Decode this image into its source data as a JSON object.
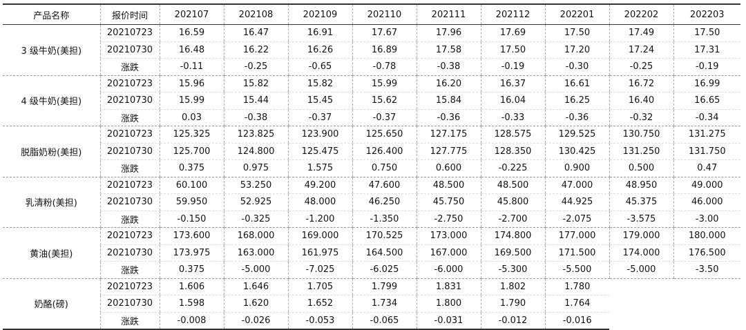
{
  "table": {
    "header": [
      "产品名称",
      "报价时间",
      "202107",
      "202108",
      "202109",
      "202110",
      "202111",
      "202112",
      "202201",
      "202202",
      "202203"
    ],
    "groups": [
      {
        "name": "3 级牛奶(美担)",
        "rows": [
          [
            "20210723",
            "16.59",
            "16.47",
            "16.91",
            "17.67",
            "17.96",
            "17.69",
            "17.50",
            "17.49",
            "17.50"
          ],
          [
            "20210730",
            "16.48",
            "16.22",
            "16.26",
            "16.89",
            "17.58",
            "17.50",
            "17.20",
            "17.24",
            "17.31"
          ],
          [
            "涨跌",
            "-0.11",
            "-0.25",
            "-0.65",
            "-0.78",
            "-0.38",
            "-0.19",
            "-0.30",
            "-0.25",
            "-0.19"
          ]
        ]
      },
      {
        "name": "4 级牛奶(美担)",
        "rows": [
          [
            "20210723",
            "15.96",
            "15.82",
            "15.82",
            "15.99",
            "16.20",
            "16.37",
            "16.61",
            "16.72",
            "16.99"
          ],
          [
            "20210730",
            "15.99",
            "15.44",
            "15.45",
            "15.62",
            "15.84",
            "16.04",
            "16.25",
            "16.40",
            "16.65"
          ],
          [
            "涨跌",
            "0.03",
            "-0.38",
            "-0.37",
            "-0.37",
            "-0.36",
            "-0.33",
            "-0.36",
            "-0.32",
            "-0.34"
          ]
        ]
      },
      {
        "name": "脱脂奶粉(美担)",
        "rows": [
          [
            "20210723",
            "125.325",
            "123.825",
            "123.900",
            "125.650",
            "127.175",
            "128.575",
            "129.525",
            "130.750",
            "131.275"
          ],
          [
            "20210730",
            "125.700",
            "124.800",
            "125.475",
            "126.400",
            "127.775",
            "128.350",
            "130.425",
            "131.250",
            "131.750"
          ],
          [
            "涨跌",
            "0.375",
            "0.975",
            "1.575",
            "0.750",
            "0.600",
            "-0.225",
            "0.900",
            "0.500",
            "0.47"
          ]
        ]
      },
      {
        "name": "乳清粉(美担)",
        "rows": [
          [
            "20210723",
            "60.100",
            "53.250",
            "49.200",
            "47.600",
            "48.500",
            "48.500",
            "47.000",
            "48.950",
            "49.000"
          ],
          [
            "20210730",
            "59.950",
            "52.925",
            "48.000",
            "46.250",
            "45.750",
            "45.800",
            "44.925",
            "45.375",
            "46.000"
          ],
          [
            "涨跌",
            "-0.150",
            "-0.325",
            "-1.200",
            "-1.350",
            "-2.750",
            "-2.700",
            "-2.075",
            "-3.575",
            "-3.00"
          ]
        ]
      },
      {
        "name": "黄油(美担)",
        "rows": [
          [
            "20210723",
            "173.600",
            "168.000",
            "169.000",
            "170.525",
            "173.000",
            "174.800",
            "177.000",
            "179.000",
            "180.000"
          ],
          [
            "20210730",
            "173.975",
            "163.000",
            "161.975",
            "164.500",
            "167.000",
            "169.500",
            "171.500",
            "174.000",
            "176.500"
          ],
          [
            "涨跌",
            "0.375",
            "-5.000",
            "-7.025",
            "-6.025",
            "-6.000",
            "-5.300",
            "-5.500",
            "-5.000",
            "-3.50"
          ]
        ]
      },
      {
        "name": "奶酪(磅)",
        "rows": [
          [
            "20210723",
            "1.606",
            "1.646",
            "1.705",
            "1.799",
            "1.831",
            "1.802",
            "1.780"
          ],
          [
            "20210730",
            "1.598",
            "1.620",
            "1.652",
            "1.734",
            "1.800",
            "1.790",
            "1.764"
          ],
          [
            "涨跌",
            "-0.008",
            "-0.026",
            "-0.053",
            "-0.065",
            "-0.031",
            "-0.012",
            "-0.016"
          ]
        ]
      }
    ]
  }
}
